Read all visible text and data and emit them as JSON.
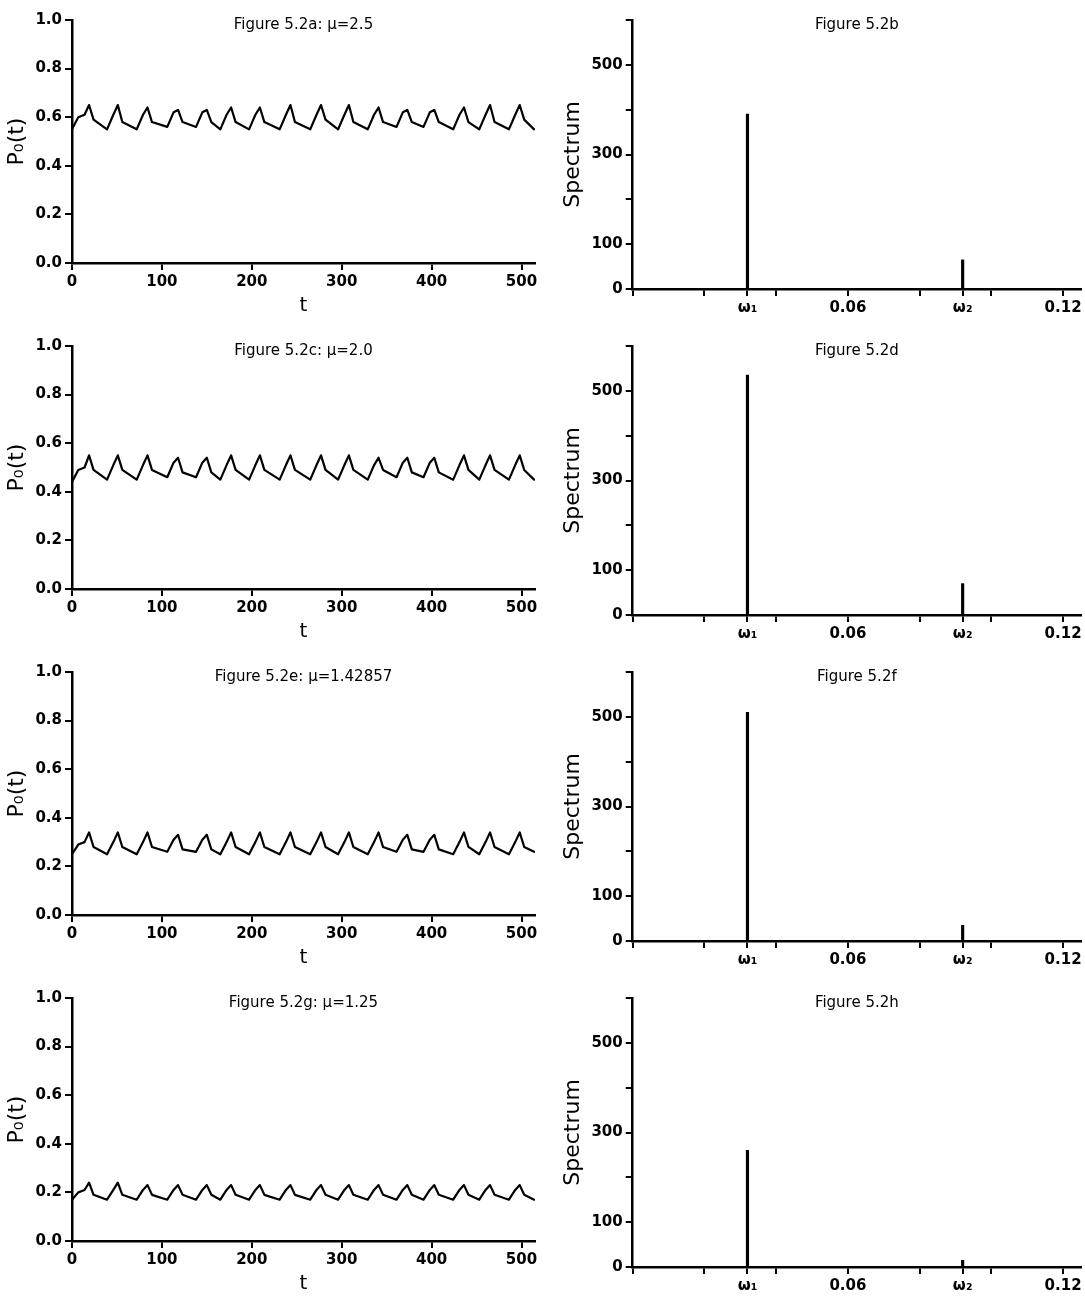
{
  "chart_data": [
    {
      "type": "line",
      "title": "Figure 5.2a: μ=2.5",
      "xlabel": "t",
      "ylabel": "P₀(t)",
      "xlim": [
        0,
        515
      ],
      "ylim": [
        0,
        1
      ],
      "xticks": [
        0,
        100,
        200,
        300,
        400,
        500
      ],
      "yticks": [
        {
          "value": 0,
          "label": "0.0"
        },
        0.2,
        0.4,
        0.6,
        0.8,
        {
          "value": 1,
          "label": "1.0"
        }
      ],
      "grid": false,
      "legend": false,
      "series": [
        {
          "color": "#000000",
          "x": [
            0,
            7,
            14,
            19,
            24,
            39,
            46,
            51,
            56,
            72,
            79,
            84,
            89,
            106,
            113,
            118,
            123,
            138,
            145,
            150,
            155,
            165,
            172,
            177,
            182,
            197,
            204,
            209,
            214,
            231,
            238,
            243,
            248,
            265,
            272,
            277,
            282,
            296,
            303,
            308,
            313,
            329,
            336,
            341,
            346,
            361,
            368,
            373,
            378,
            391,
            398,
            403,
            408,
            424,
            431,
            436,
            441,
            453,
            460,
            465,
            470,
            486,
            493,
            498,
            503,
            514
          ],
          "values": [
            0.55,
            0.6,
            0.61,
            0.65,
            0.59,
            0.55,
            0.61,
            0.65,
            0.58,
            0.55,
            0.61,
            0.64,
            0.58,
            0.56,
            0.62,
            0.63,
            0.58,
            0.56,
            0.62,
            0.63,
            0.58,
            0.55,
            0.61,
            0.64,
            0.58,
            0.55,
            0.61,
            0.64,
            0.58,
            0.55,
            0.61,
            0.65,
            0.58,
            0.55,
            0.61,
            0.65,
            0.59,
            0.55,
            0.61,
            0.65,
            0.58,
            0.55,
            0.61,
            0.64,
            0.58,
            0.56,
            0.62,
            0.63,
            0.58,
            0.56,
            0.62,
            0.63,
            0.58,
            0.55,
            0.61,
            0.64,
            0.58,
            0.55,
            0.61,
            0.65,
            0.58,
            0.55,
            0.61,
            0.65,
            0.59,
            0.55
          ]
        }
      ]
    },
    {
      "type": "bar",
      "title": "Figure 5.2b",
      "ylabel": "Spectrum",
      "xlim": [
        0,
        0.125
      ],
      "ylim": [
        0,
        600
      ],
      "xticks": [
        {
          "value": 0,
          "label": null
        },
        {
          "value": 0.02,
          "label": null
        },
        {
          "value": 0.032,
          "label": "ω₁"
        },
        {
          "value": 0.04,
          "label": null
        },
        0.06,
        {
          "value": 0.08,
          "label": null
        },
        {
          "value": 0.092,
          "label": "ω₂"
        },
        {
          "value": 0.1,
          "label": null
        },
        0.12
      ],
      "yticks": [
        0,
        100,
        {
          "value": 200,
          "label": null
        },
        300,
        {
          "value": 400,
          "label": null
        },
        500,
        {
          "value": 600,
          "label": null
        }
      ],
      "grid": false,
      "legend": false,
      "series": [
        {
          "color": "#000000",
          "x": [
            0.032,
            0.092
          ],
          "values": [
            390,
            65
          ]
        }
      ]
    },
    {
      "type": "line",
      "title": "Figure 5.2c: μ=2.0",
      "xlabel": "t",
      "ylabel": "P₀(t)",
      "xlim": [
        0,
        515
      ],
      "ylim": [
        0,
        1
      ],
      "xticks": [
        0,
        100,
        200,
        300,
        400,
        500
      ],
      "yticks": [
        {
          "value": 0,
          "label": "0.0"
        },
        0.2,
        0.4,
        0.6,
        0.8,
        {
          "value": 1,
          "label": "1.0"
        }
      ],
      "grid": false,
      "legend": false,
      "series": [
        {
          "color": "#000000",
          "x": [
            0,
            7,
            14,
            19,
            24,
            39,
            46,
            51,
            56,
            72,
            79,
            84,
            89,
            106,
            113,
            118,
            123,
            138,
            145,
            150,
            155,
            165,
            172,
            177,
            182,
            197,
            204,
            209,
            214,
            231,
            238,
            243,
            248,
            265,
            272,
            277,
            282,
            296,
            303,
            308,
            313,
            329,
            336,
            341,
            346,
            361,
            368,
            373,
            378,
            391,
            398,
            403,
            408,
            424,
            431,
            436,
            441,
            453,
            460,
            465,
            470,
            486,
            493,
            498,
            503,
            514
          ],
          "values": [
            0.44,
            0.49,
            0.5,
            0.55,
            0.49,
            0.45,
            0.51,
            0.55,
            0.49,
            0.45,
            0.51,
            0.55,
            0.49,
            0.46,
            0.52,
            0.54,
            0.48,
            0.46,
            0.52,
            0.54,
            0.48,
            0.45,
            0.51,
            0.55,
            0.49,
            0.45,
            0.51,
            0.55,
            0.49,
            0.45,
            0.51,
            0.55,
            0.49,
            0.45,
            0.51,
            0.55,
            0.49,
            0.45,
            0.51,
            0.55,
            0.49,
            0.45,
            0.51,
            0.54,
            0.49,
            0.46,
            0.52,
            0.54,
            0.48,
            0.46,
            0.52,
            0.54,
            0.48,
            0.45,
            0.51,
            0.55,
            0.49,
            0.45,
            0.51,
            0.55,
            0.49,
            0.45,
            0.51,
            0.55,
            0.49,
            0.45
          ]
        }
      ]
    },
    {
      "type": "bar",
      "title": "Figure 5.2d",
      "ylabel": "Spectrum",
      "xlim": [
        0,
        0.125
      ],
      "ylim": [
        0,
        600
      ],
      "xticks": [
        {
          "value": 0,
          "label": null
        },
        {
          "value": 0.02,
          "label": null
        },
        {
          "value": 0.032,
          "label": "ω₁"
        },
        {
          "value": 0.04,
          "label": null
        },
        0.06,
        {
          "value": 0.08,
          "label": null
        },
        {
          "value": 0.092,
          "label": "ω₂"
        },
        {
          "value": 0.1,
          "label": null
        },
        0.12
      ],
      "yticks": [
        0,
        100,
        {
          "value": 200,
          "label": null
        },
        300,
        {
          "value": 400,
          "label": null
        },
        500,
        {
          "value": 600,
          "label": null
        }
      ],
      "grid": false,
      "legend": false,
      "series": [
        {
          "color": "#000000",
          "x": [
            0.032,
            0.092
          ],
          "values": [
            535,
            70
          ]
        }
      ]
    },
    {
      "type": "line",
      "title": "Figure 5.2e: μ=1.42857",
      "xlabel": "t",
      "ylabel": "P₀(t)",
      "xlim": [
        0,
        515
      ],
      "ylim": [
        0,
        1
      ],
      "xticks": [
        0,
        100,
        200,
        300,
        400,
        500
      ],
      "yticks": [
        {
          "value": 0,
          "label": "0.0"
        },
        0.2,
        0.4,
        0.6,
        0.8,
        {
          "value": 1,
          "label": "1.0"
        }
      ],
      "grid": false,
      "legend": false,
      "series": [
        {
          "color": "#000000",
          "x": [
            0,
            7,
            14,
            19,
            24,
            39,
            46,
            51,
            56,
            72,
            79,
            84,
            89,
            106,
            113,
            118,
            123,
            138,
            145,
            150,
            155,
            165,
            172,
            177,
            182,
            197,
            204,
            209,
            214,
            231,
            238,
            243,
            248,
            265,
            272,
            277,
            282,
            296,
            303,
            308,
            313,
            329,
            336,
            341,
            346,
            361,
            368,
            373,
            378,
            391,
            398,
            403,
            408,
            424,
            431,
            436,
            441,
            453,
            460,
            465,
            470,
            486,
            493,
            498,
            503,
            514
          ],
          "values": [
            0.25,
            0.29,
            0.3,
            0.34,
            0.28,
            0.25,
            0.3,
            0.34,
            0.28,
            0.25,
            0.3,
            0.34,
            0.28,
            0.26,
            0.31,
            0.33,
            0.27,
            0.26,
            0.31,
            0.33,
            0.27,
            0.25,
            0.3,
            0.34,
            0.28,
            0.25,
            0.3,
            0.34,
            0.28,
            0.25,
            0.3,
            0.34,
            0.28,
            0.25,
            0.3,
            0.34,
            0.28,
            0.25,
            0.3,
            0.34,
            0.28,
            0.25,
            0.3,
            0.34,
            0.28,
            0.26,
            0.31,
            0.33,
            0.27,
            0.26,
            0.31,
            0.33,
            0.27,
            0.25,
            0.3,
            0.34,
            0.28,
            0.25,
            0.3,
            0.34,
            0.28,
            0.25,
            0.3,
            0.34,
            0.28,
            0.26
          ]
        }
      ]
    },
    {
      "type": "bar",
      "title": "Figure 5.2f",
      "ylabel": "Spectrum",
      "xlim": [
        0,
        0.125
      ],
      "ylim": [
        0,
        600
      ],
      "xticks": [
        {
          "value": 0,
          "label": null
        },
        {
          "value": 0.02,
          "label": null
        },
        {
          "value": 0.032,
          "label": "ω₁"
        },
        {
          "value": 0.04,
          "label": null
        },
        0.06,
        {
          "value": 0.08,
          "label": null
        },
        {
          "value": 0.092,
          "label": "ω₂"
        },
        {
          "value": 0.1,
          "label": null
        },
        0.12
      ],
      "yticks": [
        0,
        100,
        {
          "value": 200,
          "label": null
        },
        300,
        {
          "value": 400,
          "label": null
        },
        500,
        {
          "value": 600,
          "label": null
        }
      ],
      "grid": false,
      "legend": false,
      "series": [
        {
          "color": "#000000",
          "x": [
            0.032,
            0.092
          ],
          "values": [
            510,
            35
          ]
        }
      ]
    },
    {
      "type": "line",
      "title": "Figure 5.2g: μ=1.25",
      "xlabel": "t",
      "ylabel": "P₀(t)",
      "xlim": [
        0,
        515
      ],
      "ylim": [
        0,
        1
      ],
      "xticks": [
        0,
        100,
        200,
        300,
        400,
        500
      ],
      "yticks": [
        {
          "value": 0,
          "label": "0.0"
        },
        0.2,
        0.4,
        0.6,
        0.8,
        {
          "value": 1,
          "label": "1.0"
        }
      ],
      "grid": false,
      "legend": false,
      "series": [
        {
          "color": "#000000",
          "x": [
            0,
            7,
            14,
            19,
            24,
            39,
            46,
            51,
            56,
            72,
            79,
            84,
            89,
            106,
            113,
            118,
            123,
            138,
            145,
            150,
            155,
            165,
            172,
            177,
            182,
            197,
            204,
            209,
            214,
            231,
            238,
            243,
            248,
            265,
            272,
            277,
            282,
            296,
            303,
            308,
            313,
            329,
            336,
            341,
            346,
            361,
            368,
            373,
            378,
            391,
            398,
            403,
            408,
            424,
            431,
            436,
            441,
            453,
            460,
            465,
            470,
            486,
            493,
            498,
            503,
            514
          ],
          "values": [
            0.17,
            0.2,
            0.21,
            0.24,
            0.19,
            0.17,
            0.21,
            0.24,
            0.19,
            0.17,
            0.21,
            0.23,
            0.19,
            0.17,
            0.21,
            0.23,
            0.19,
            0.17,
            0.21,
            0.23,
            0.19,
            0.17,
            0.21,
            0.23,
            0.19,
            0.17,
            0.21,
            0.23,
            0.19,
            0.17,
            0.21,
            0.23,
            0.19,
            0.17,
            0.21,
            0.23,
            0.19,
            0.17,
            0.21,
            0.23,
            0.19,
            0.17,
            0.21,
            0.23,
            0.19,
            0.17,
            0.21,
            0.23,
            0.19,
            0.17,
            0.21,
            0.23,
            0.19,
            0.17,
            0.21,
            0.23,
            0.19,
            0.17,
            0.21,
            0.23,
            0.19,
            0.17,
            0.21,
            0.23,
            0.19,
            0.17
          ]
        }
      ]
    },
    {
      "type": "bar",
      "title": "Figure 5.2h",
      "ylabel": "Spectrum",
      "xlim": [
        0,
        0.125
      ],
      "ylim": [
        0,
        600
      ],
      "xticks": [
        {
          "value": 0,
          "label": null
        },
        {
          "value": 0.02,
          "label": null
        },
        {
          "value": 0.032,
          "label": "ω₁"
        },
        {
          "value": 0.04,
          "label": null
        },
        0.06,
        {
          "value": 0.08,
          "label": null
        },
        {
          "value": 0.092,
          "label": "ω₂"
        },
        {
          "value": 0.1,
          "label": null
        },
        0.12
      ],
      "yticks": [
        0,
        100,
        {
          "value": 200,
          "label": null
        },
        300,
        {
          "value": 400,
          "label": null
        },
        500,
        {
          "value": 600,
          "label": null
        }
      ],
      "grid": false,
      "legend": false,
      "series": [
        {
          "color": "#000000",
          "x": [
            0.032,
            0.092
          ],
          "values": [
            260,
            15
          ]
        }
      ]
    }
  ]
}
